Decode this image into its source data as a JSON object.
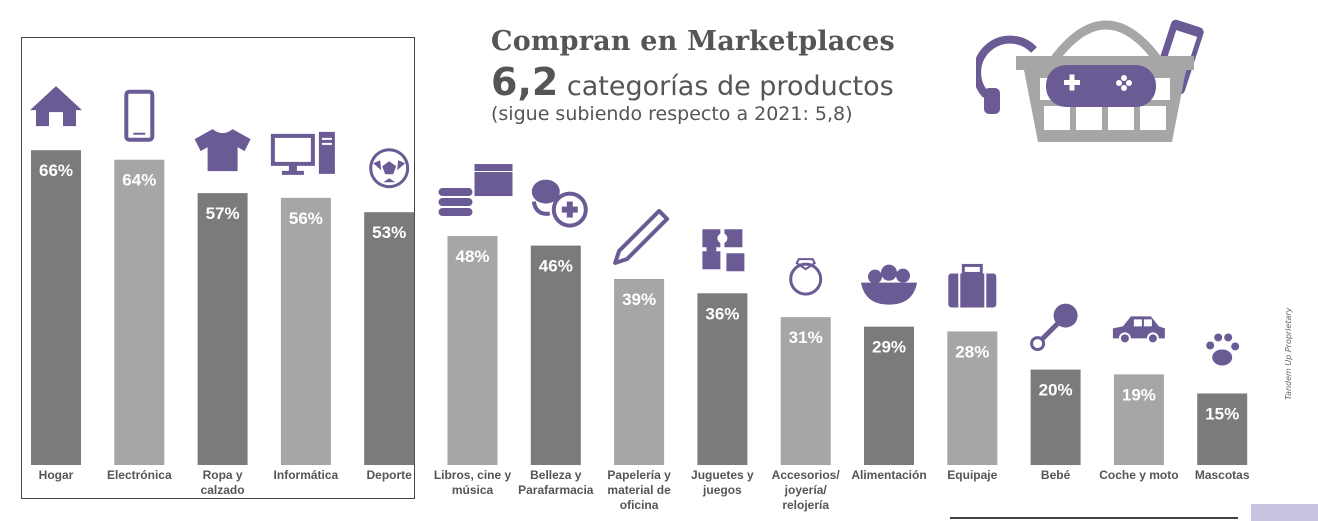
{
  "title": "Compran en Marketplaces",
  "subtitle_number": "6,2",
  "subtitle_text": "categorías de productos",
  "note": "(sigue subiendo respecto a 2021: 5,8)",
  "watermark": "Tandem Up Proprietary",
  "colors": {
    "dark_bar": "#7b7b7b",
    "light_bar": "#a6a6a6",
    "icon": "#6b5b95",
    "hero_basket": "#a6a6a6"
  },
  "chart_data": {
    "type": "bar",
    "categories": [
      "Hogar",
      "Electrónica",
      "Ropa y calzado",
      "Informática",
      "Deporte",
      "Libros, cine y música",
      "Belleza y Parafarmacia",
      "Papelería y material de oficina",
      "Juguetes y juegos",
      "Accesorios/ joyería/ relojería",
      "Alimentación",
      "Equipaje",
      "Bebé",
      "Coche y moto",
      "Mascotas"
    ],
    "category_lines": [
      [
        "Hogar"
      ],
      [
        "Electrónica"
      ],
      [
        "Ropa y",
        "calzado"
      ],
      [
        "Informática"
      ],
      [
        "Deporte"
      ],
      [
        "Libros, cine y",
        "música"
      ],
      [
        "Belleza y",
        "Parafarmacia"
      ],
      [
        "Papelería y",
        "material de",
        "oficina"
      ],
      [
        "Juguetes y",
        "juegos"
      ],
      [
        "Accesorios/",
        "joyería/",
        "relojería"
      ],
      [
        "Alimentación"
      ],
      [
        "Equipaje"
      ],
      [
        "Bebé"
      ],
      [
        "Coche y moto"
      ],
      [
        "Mascotas"
      ]
    ],
    "values": [
      66,
      64,
      57,
      56,
      53,
      48,
      46,
      39,
      36,
      31,
      29,
      28,
      20,
      19,
      15
    ],
    "value_labels": [
      "66%",
      "64%",
      "57%",
      "56%",
      "53%",
      "48%",
      "46%",
      "39%",
      "36%",
      "31%",
      "29%",
      "28%",
      "20%",
      "19%",
      "15%"
    ],
    "shades": [
      "dark",
      "light",
      "dark",
      "light",
      "dark",
      "light",
      "dark",
      "light",
      "dark",
      "light",
      "dark",
      "light",
      "dark",
      "light",
      "dark"
    ],
    "icons": [
      "house-icon",
      "smartphone-icon",
      "tshirt-icon",
      "computer-icon",
      "soccer-ball-icon",
      "books-clapperboard-icon",
      "beauty-pharmacy-icon",
      "pencil-icon",
      "puzzle-icon",
      "ring-icon",
      "fruit-bowl-icon",
      "suitcase-icon",
      "rattle-icon",
      "car-icon",
      "paw-icon"
    ],
    "highlighted_group": [
      "Hogar",
      "Electrónica",
      "Ropa y calzado",
      "Informática",
      "Deporte"
    ],
    "ylim": [
      0,
      70
    ],
    "grid": false,
    "legend": "none"
  }
}
